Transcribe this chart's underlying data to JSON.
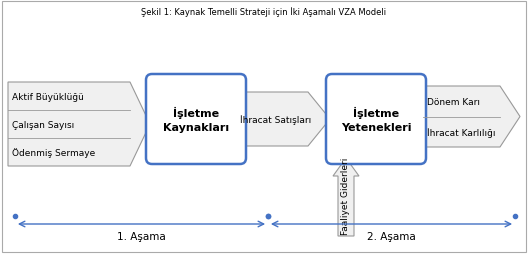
{
  "title": "Şekil 1: Kaynak Temelli Strateji için İki Aşamalı VZA Modeli",
  "bg_color": "#ffffff",
  "box_border_color": "#4472C4",
  "box_fill_color": "#ffffff",
  "arrow_fill_color": "#f0f0f0",
  "arrow_edge_color": "#999999",
  "box1_label": "İşletme\nKaynakları",
  "box2_label": "İşletme\nYetenekleri",
  "mid_arrow_label": "İhracat Satışları",
  "input_labels": [
    "Ödenmiş Sermaye",
    "Çalışan Sayısı",
    "Aktif Büyüklüğü"
  ],
  "output_labels": [
    "İhracat Karlılığı",
    "Dönem Karı"
  ],
  "bottom_arrow1_label": "1. Aşama",
  "bottom_arrow2_label": "2. Aşama",
  "faaliyet_label": "Faaliyet Giderleri",
  "text_color": "#000000",
  "stage_arrow_color": "#4472C4",
  "border_color": "#aaaaaa"
}
